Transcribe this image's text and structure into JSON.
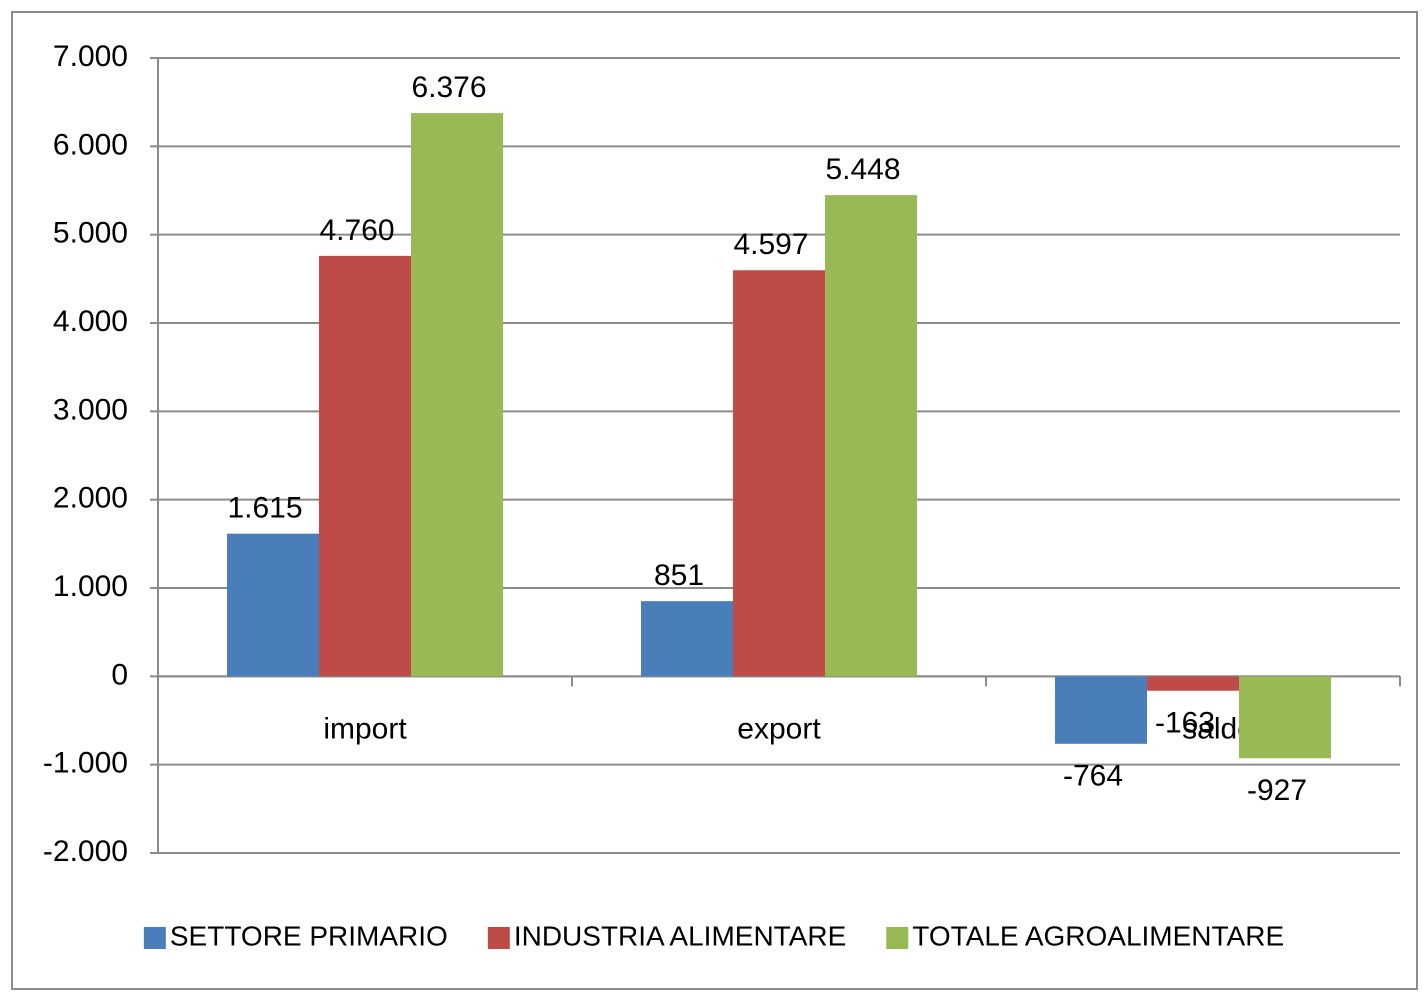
{
  "chart_data": {
    "type": "bar",
    "categories": [
      "import",
      "export",
      "saldo"
    ],
    "series": [
      {
        "name": "SETTORE PRIMARIO",
        "color": "#4a7ebb",
        "values": [
          1615,
          851,
          -764
        ],
        "value_labels": [
          "1.615",
          "851",
          "-764"
        ]
      },
      {
        "name": "INDUSTRIA ALIMENTARE",
        "color": "#be4b48",
        "values": [
          4760,
          4597,
          -163
        ],
        "value_labels": [
          "4.760",
          "4.597",
          "-163"
        ]
      },
      {
        "name": "TOTALE AGROALIMENTARE",
        "color": "#98b954",
        "values": [
          6376,
          5448,
          -927
        ],
        "value_labels": [
          "6.376",
          "5.448",
          "-927"
        ]
      }
    ],
    "ylim": [
      -2000,
      7000
    ],
    "yticks": [
      {
        "value": -2000,
        "label": "-2.000"
      },
      {
        "value": -1000,
        "label": "-1.000"
      },
      0,
      {
        "value": 1000,
        "label": "1.000"
      },
      {
        "value": 2000,
        "label": "2.000"
      },
      {
        "value": 3000,
        "label": "3.000"
      },
      {
        "value": 4000,
        "label": "4.000"
      },
      {
        "value": 5000,
        "label": "5.000"
      },
      {
        "value": 6000,
        "label": "6.000"
      },
      {
        "value": 7000,
        "label": "7.000"
      }
    ],
    "grid": true,
    "legend": "bottom"
  }
}
